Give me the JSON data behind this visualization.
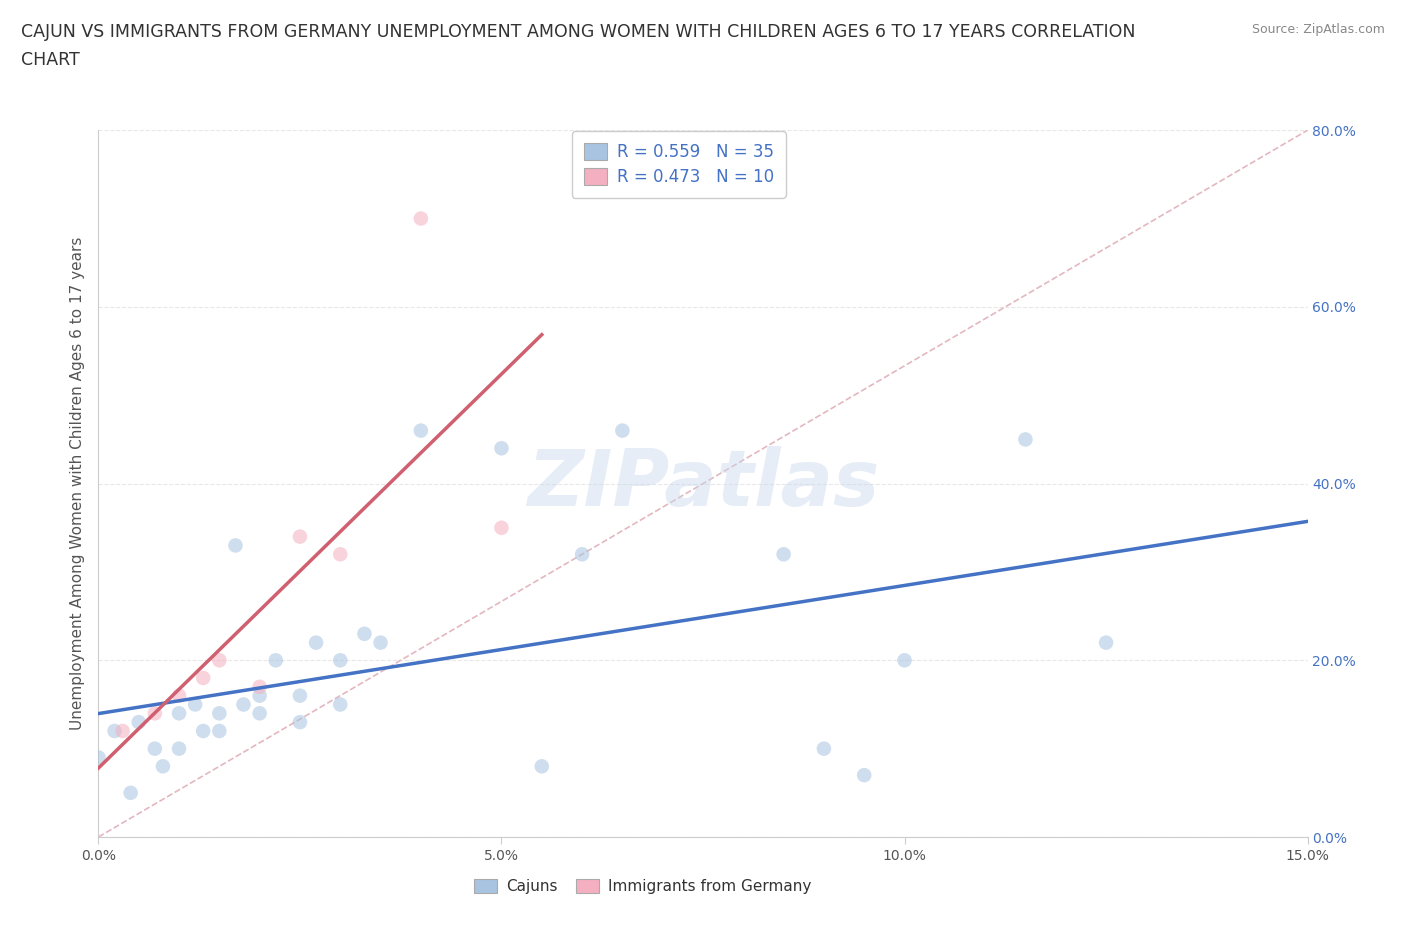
{
  "title_line1": "CAJUN VS IMMIGRANTS FROM GERMANY UNEMPLOYMENT AMONG WOMEN WITH CHILDREN AGES 6 TO 17 YEARS CORRELATION",
  "title_line2": "CHART",
  "source": "Source: ZipAtlas.com",
  "ylabel": "Unemployment Among Women with Children Ages 6 to 17 years",
  "xlim": [
    0.0,
    0.15
  ],
  "ylim": [
    0.0,
    0.8
  ],
  "xticks": [
    0.0,
    0.05,
    0.1,
    0.15
  ],
  "xtick_labels": [
    "0.0%",
    "5.0%",
    "10.0%",
    "15.0%"
  ],
  "ytick_labels_right": [
    "0.0%",
    "20.0%",
    "40.0%",
    "60.0%",
    "80.0%"
  ],
  "yticks_right": [
    0.0,
    0.2,
    0.4,
    0.6,
    0.8
  ],
  "cajun_R": 0.559,
  "cajun_N": 35,
  "germany_R": 0.473,
  "germany_N": 10,
  "cajun_color": "#a8c4e0",
  "germany_color": "#f4b0c0",
  "cajun_line_color": "#4472c4",
  "germany_line_color": "#d06070",
  "diagonal_color": "#e0b0b8",
  "background_color": "#ffffff",
  "grid_color": "#e8e8e8",
  "legend_label_cajun": "Cajuns",
  "legend_label_germany": "Immigrants from Germany",
  "cajun_x": [
    0.0,
    0.002,
    0.004,
    0.005,
    0.007,
    0.008,
    0.01,
    0.01,
    0.012,
    0.013,
    0.015,
    0.015,
    0.017,
    0.018,
    0.02,
    0.02,
    0.022,
    0.025,
    0.025,
    0.027,
    0.03,
    0.03,
    0.033,
    0.035,
    0.04,
    0.05,
    0.055,
    0.06,
    0.065,
    0.085,
    0.09,
    0.095,
    0.1,
    0.115,
    0.125
  ],
  "cajun_y": [
    0.09,
    0.12,
    0.05,
    0.13,
    0.1,
    0.08,
    0.14,
    0.1,
    0.15,
    0.12,
    0.14,
    0.12,
    0.33,
    0.15,
    0.16,
    0.14,
    0.2,
    0.16,
    0.13,
    0.22,
    0.2,
    0.15,
    0.23,
    0.22,
    0.46,
    0.44,
    0.08,
    0.32,
    0.46,
    0.32,
    0.1,
    0.07,
    0.2,
    0.45,
    0.22
  ],
  "germany_x": [
    0.003,
    0.007,
    0.01,
    0.013,
    0.015,
    0.02,
    0.025,
    0.03,
    0.04,
    0.05
  ],
  "germany_y": [
    0.12,
    0.14,
    0.16,
    0.18,
    0.2,
    0.17,
    0.34,
    0.32,
    0.7,
    0.35
  ],
  "cajun_trendline_x": [
    0.0,
    0.15
  ],
  "germany_trendline_x_end": 0.055,
  "marker_size": 110,
  "marker_alpha": 0.55,
  "title_fontsize": 12.5,
  "axis_label_fontsize": 11,
  "tick_fontsize": 10,
  "legend_fontsize": 12
}
